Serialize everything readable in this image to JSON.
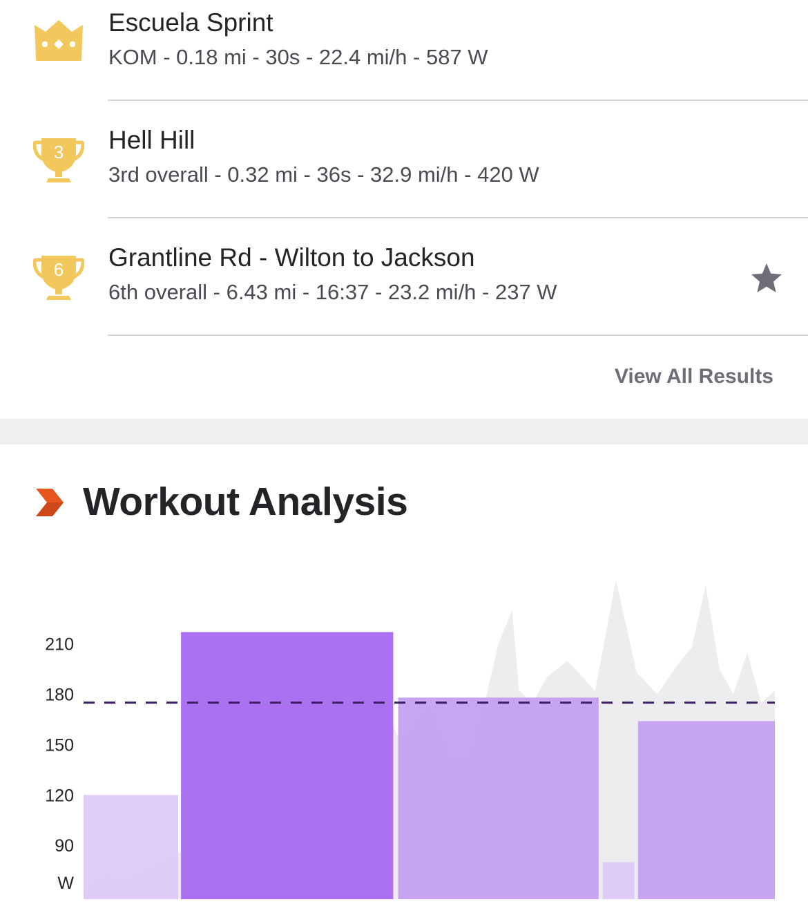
{
  "segments": [
    {
      "name": "Escuela Sprint",
      "stats": "KOM - 0.18 mi - 30s - 22.4 mi/h - 587 W",
      "icon": "crown-icon",
      "rank": "",
      "starred": false
    },
    {
      "name": "Hell Hill",
      "stats": "3rd overall - 0.32 mi - 36s - 32.9 mi/h - 420 W",
      "icon": "trophy-icon",
      "rank": "3",
      "starred": false
    },
    {
      "name": "Grantline Rd - Wilton to Jackson",
      "stats": "6th overall - 6.43 mi - 16:37 - 23.2 mi/h - 237 W",
      "icon": "trophy-icon",
      "rank": "6",
      "starred": true
    }
  ],
  "view_all_label": "View All Results",
  "analysis": {
    "title": "Workout Analysis",
    "icon": "chevron-right-icon"
  },
  "colors": {
    "gold": "#F2C75C",
    "accent_orange": "#E8561F",
    "bar_dark": "#A56AEF",
    "bar_mid": "#C29BF2",
    "bar_light": "#DCC8F6",
    "ftp_line": "#3E1F66",
    "power_area": "#EDEDEF",
    "star": "#6E6E78"
  },
  "chart_data": {
    "type": "bar",
    "ylabel": "W",
    "yticks": [
      90,
      120,
      150,
      180,
      210
    ],
    "ylim": [
      58,
      267
    ],
    "reference_line": 175,
    "zone_bars": [
      {
        "start": 0.0,
        "end": 0.137,
        "value": 120,
        "shade": "light"
      },
      {
        "start": 0.141,
        "end": 0.448,
        "value": 217,
        "shade": "dark"
      },
      {
        "start": 0.455,
        "end": 0.745,
        "value": 178,
        "shade": "mid"
      },
      {
        "start": 0.751,
        "end": 0.797,
        "value": 80,
        "shade": "light"
      },
      {
        "start": 0.802,
        "end": 1.0,
        "value": 164,
        "shade": "mid"
      }
    ],
    "power_series": {
      "x": [
        0,
        0.03,
        0.06,
        0.1,
        0.14,
        0.18,
        0.22,
        0.26,
        0.29,
        0.32,
        0.36,
        0.4,
        0.43,
        0.46,
        0.5,
        0.53,
        0.56,
        0.58,
        0.6,
        0.62,
        0.63,
        0.65,
        0.67,
        0.7,
        0.74,
        0.77,
        0.8,
        0.83,
        0.86,
        0.88,
        0.9,
        0.92,
        0.94,
        0.96,
        0.98,
        1.0
      ],
      "y": [
        63,
        72,
        69,
        78,
        86,
        94,
        101,
        108,
        118,
        128,
        144,
        165,
        178,
        150,
        173,
        142,
        141,
        174,
        210,
        230,
        182,
        175,
        190,
        200,
        182,
        248,
        193,
        180,
        198,
        208,
        245,
        195,
        180,
        205,
        175,
        182
      ]
    }
  }
}
